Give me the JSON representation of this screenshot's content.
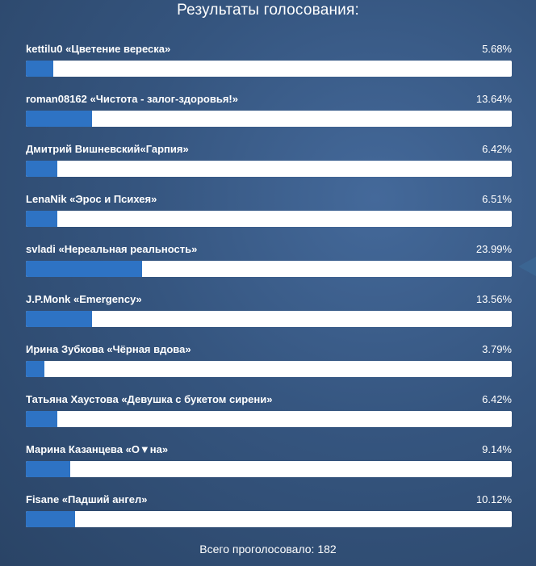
{
  "poll": {
    "title": "Результаты голосования:",
    "total_label": "Всего проголосовало:",
    "total_value": "182",
    "bar_color": "#2e73c4",
    "track_color": "#ffffff",
    "results": [
      {
        "name": "kettilu0 «Цветение вереска»",
        "percent_label": "5.68%",
        "percent": 5.68
      },
      {
        "name": "roman08162 «Чистота - залог-здоровья!»",
        "percent_label": "13.64%",
        "percent": 13.64
      },
      {
        "name": "Дмитрий Вишневский«Гарпия»",
        "percent_label": "6.42%",
        "percent": 6.42
      },
      {
        "name": "LenaNik «Эрос и Психея»",
        "percent_label": "6.51%",
        "percent": 6.51
      },
      {
        "name": "svladi «Нереальная реальность»",
        "percent_label": "23.99%",
        "percent": 23.99
      },
      {
        "name": "J.P.Monk «Emergency»",
        "percent_label": "13.56%",
        "percent": 13.56
      },
      {
        "name": "Ирина Зубкова «Чёрная вдова»",
        "percent_label": "3.79%",
        "percent": 3.79
      },
      {
        "name": "Татьяна Хаустова «Девушка с букетом сирени»",
        "percent_label": "6.42%",
        "percent": 6.42
      },
      {
        "name": "Марина Казанцева «О▼на»",
        "percent_label": "9.14%",
        "percent": 9.14
      },
      {
        "name": "Fisane «Падший ангел»",
        "percent_label": "10.12%",
        "percent": 10.12
      }
    ]
  }
}
